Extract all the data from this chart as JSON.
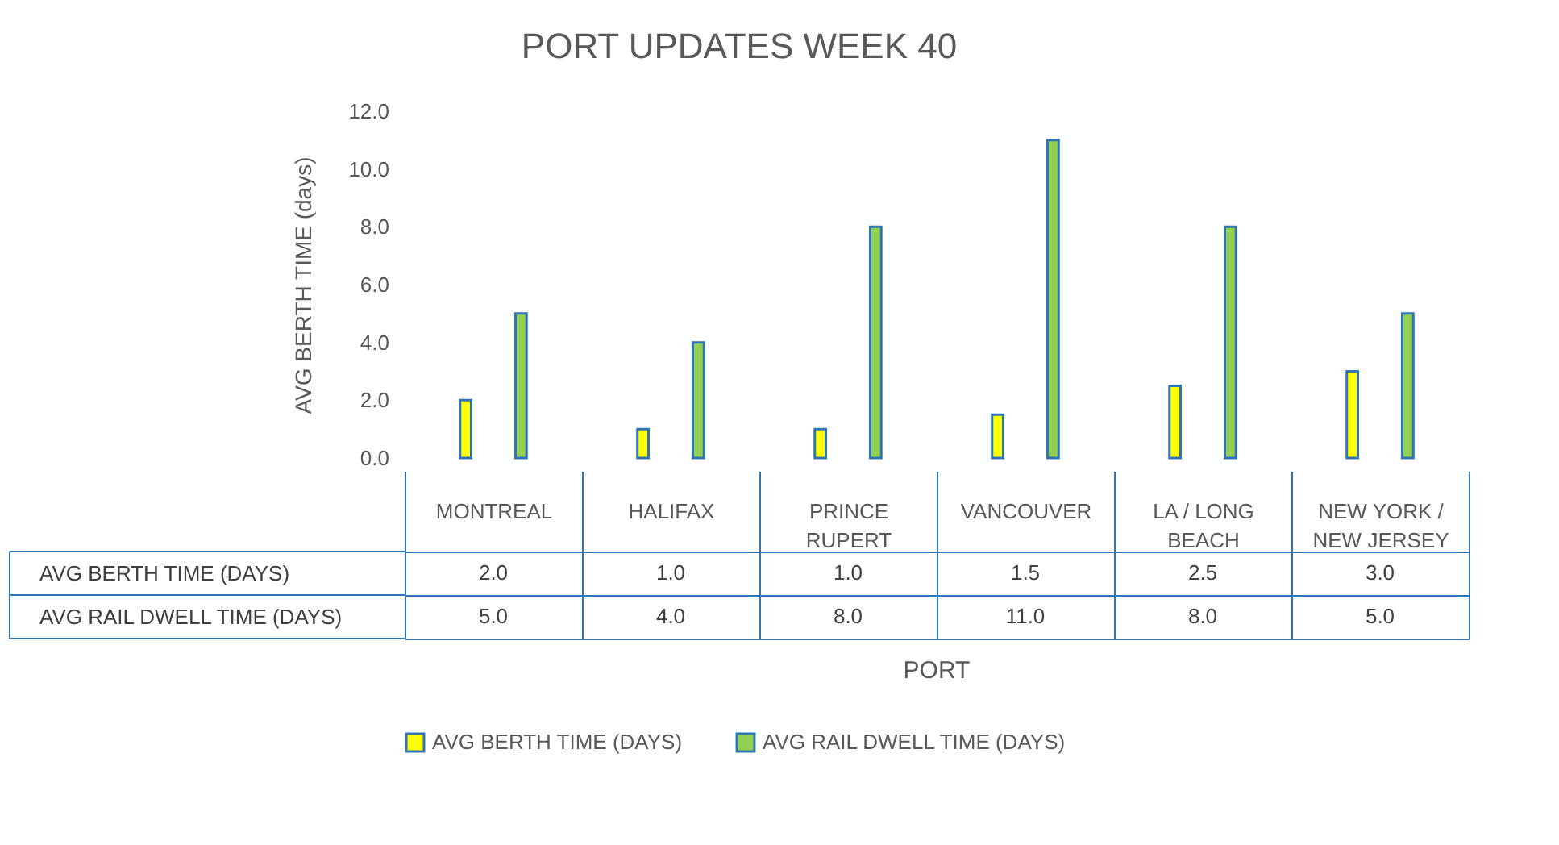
{
  "chart_data": {
    "type": "bar",
    "title": "PORT UPDATES WEEK 40",
    "xlabel": "PORT",
    "ylabel": "AVG BERTH TIME (days)",
    "categories": [
      "MONTREAL",
      "HALIFAX",
      "PRINCE RUPERT",
      "VANCOUVER",
      "LA / LONG BEACH",
      "NEW YORK / NEW JERSEY"
    ],
    "series": [
      {
        "name": "AVG BERTH TIME (DAYS)",
        "color": "#ffff00",
        "values": [
          2.0,
          1.0,
          1.0,
          1.5,
          2.5,
          3.0
        ],
        "value_labels": [
          "2.0",
          "1.0",
          "1.0",
          "1.5",
          "2.5",
          "3.0"
        ]
      },
      {
        "name": "AVG RAIL DWELL TIME (DAYS)",
        "color": "#92d050",
        "values": [
          5.0,
          4.0,
          8.0,
          11.0,
          8.0,
          5.0
        ],
        "value_labels": [
          "5.0",
          "4.0",
          "8.0",
          "11.0",
          "8.0",
          "5.0"
        ]
      }
    ],
    "ylim": [
      0,
      12
    ],
    "yticks": [
      {
        "value": 0,
        "label": "0.0"
      },
      {
        "value": 2,
        "label": "2.0"
      },
      {
        "value": 4,
        "label": "4.0"
      },
      {
        "value": 6,
        "label": "6.0"
      },
      {
        "value": 8,
        "label": "8.0"
      },
      {
        "value": 10,
        "label": "10.0"
      },
      {
        "value": 12,
        "label": "12.0"
      }
    ],
    "legend": "bottom"
  }
}
